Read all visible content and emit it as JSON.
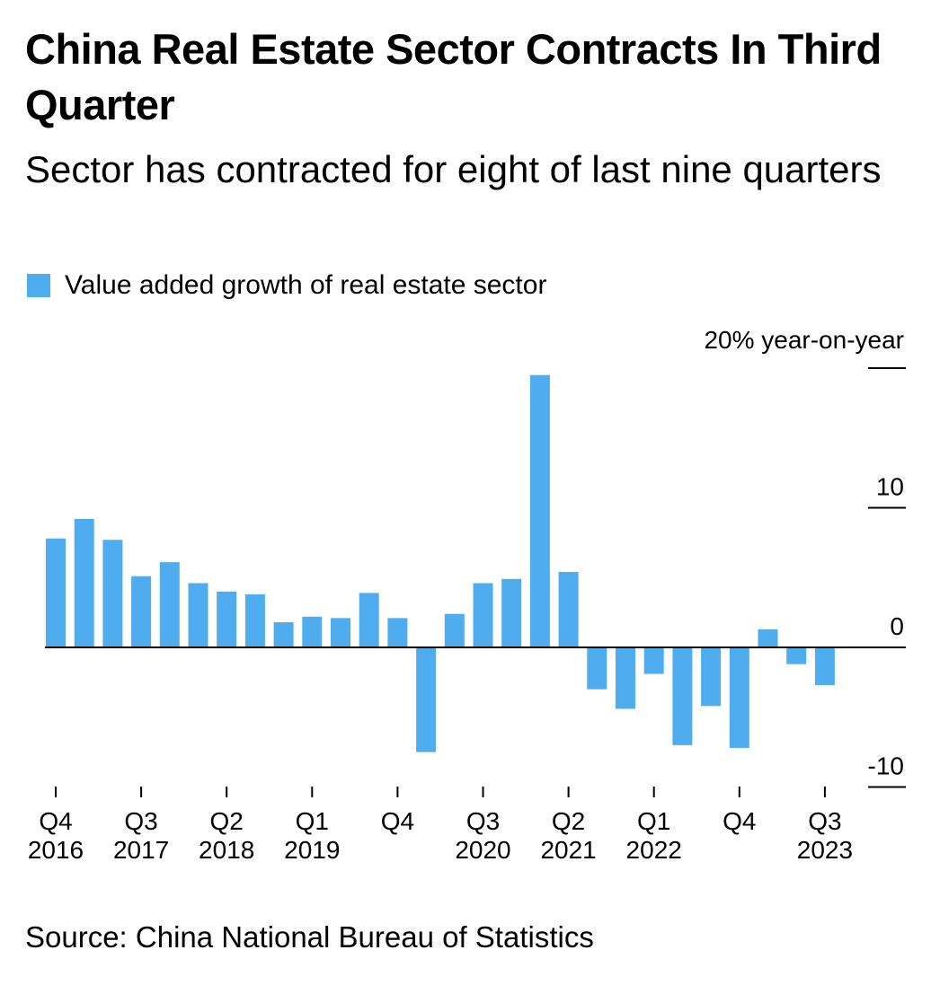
{
  "colors": {
    "bar": "#4FACEF",
    "axis": "#000000"
  },
  "chart_data": {
    "type": "bar",
    "title": "China Real Estate Sector Contracts In Third Quarter",
    "subtitle": "Sector has contracted for eight of last nine quarters",
    "legend": {
      "label": "Value added growth of real estate sector",
      "placement": "top-left"
    },
    "source": "Source: China National Bureau of Statistics",
    "y_unit_label": "20% year-on-year",
    "ylim": [
      -10.5,
      20
    ],
    "y_ticks": [
      {
        "value": 20,
        "label": ""
      },
      {
        "value": 10,
        "label": "10"
      },
      {
        "value": 0,
        "label": "0"
      },
      {
        "value": -10,
        "label": "-10"
      }
    ],
    "grid": false,
    "categories": [
      "Q4 2016",
      "Q1 2017",
      "Q2 2017",
      "Q3 2017",
      "Q4 2017",
      "Q1 2018",
      "Q2 2018",
      "Q3 2018",
      "Q4 2018",
      "Q1 2019",
      "Q2 2019",
      "Q3 2019",
      "Q4 2019",
      "Q1 2020",
      "Q2 2020",
      "Q3 2020",
      "Q4 2020",
      "Q1 2021",
      "Q2 2021",
      "Q3 2021",
      "Q4 2021",
      "Q1 2022",
      "Q2 2022",
      "Q3 2022",
      "Q4 2022",
      "Q1 2023",
      "Q2 2023",
      "Q3 2023"
    ],
    "values": [
      7.8,
      9.2,
      7.7,
      5.1,
      6.1,
      4.6,
      4.0,
      3.8,
      1.8,
      2.2,
      2.1,
      3.9,
      2.1,
      -7.5,
      2.4,
      4.6,
      4.9,
      19.5,
      5.4,
      -3.0,
      -4.4,
      -1.9,
      -7.0,
      -4.2,
      -7.2,
      1.3,
      -1.2,
      -2.7
    ],
    "x_tick_labels": [
      {
        "index": 0,
        "label": "Q4",
        "year": "2016"
      },
      {
        "index": 3,
        "label": "Q3",
        "year": "2017"
      },
      {
        "index": 6,
        "label": "Q2",
        "year": "2018"
      },
      {
        "index": 9,
        "label": "Q1",
        "year": "2019"
      },
      {
        "index": 12,
        "label": "Q4",
        "year": ""
      },
      {
        "index": 15,
        "label": "Q3",
        "year": "2020"
      },
      {
        "index": 18,
        "label": "Q2",
        "year": "2021"
      },
      {
        "index": 21,
        "label": "Q1",
        "year": "2022"
      },
      {
        "index": 24,
        "label": "Q4",
        "year": ""
      },
      {
        "index": 27,
        "label": "Q3",
        "year": "2023"
      }
    ]
  }
}
